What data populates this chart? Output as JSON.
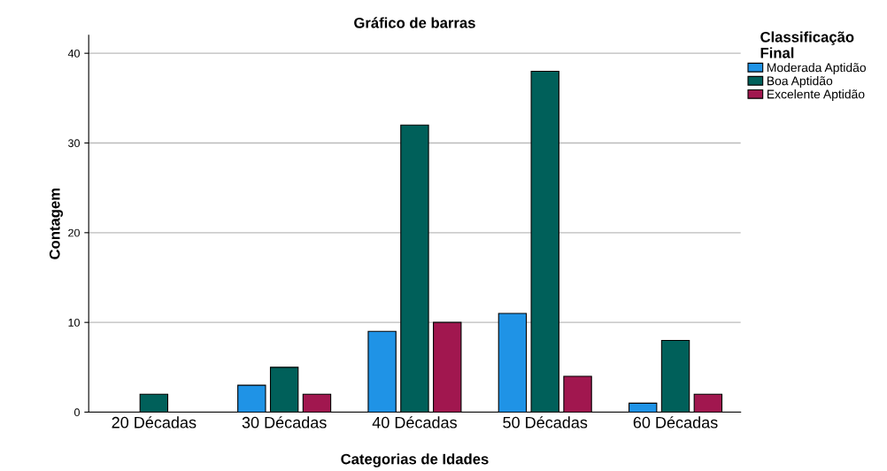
{
  "chart_data": {
    "type": "bar",
    "title": "Gráfico de barras",
    "xlabel": "Categorias de Idades",
    "ylabel": "Contagem",
    "legend_title": "Classificação\nFinal",
    "categories": [
      "20 Décadas",
      "30 Décadas",
      "40 Décadas",
      "50 Décadas",
      "60 Décadas"
    ],
    "series": [
      {
        "name": "Moderada Aptidão",
        "color": "#1f93e6",
        "values": [
          null,
          3,
          9,
          11,
          1
        ]
      },
      {
        "name": "Boa Aptidão",
        "color": "#00605a",
        "values": [
          2,
          5,
          32,
          38,
          8
        ]
      },
      {
        "name": "Excelente Aptidão",
        "color": "#a1174f",
        "values": [
          null,
          2,
          10,
          4,
          2
        ]
      }
    ],
    "ylim": [
      0,
      42
    ],
    "yticks": [
      0,
      10,
      20,
      30,
      40
    ],
    "grid": "y",
    "legend": "top right"
  }
}
